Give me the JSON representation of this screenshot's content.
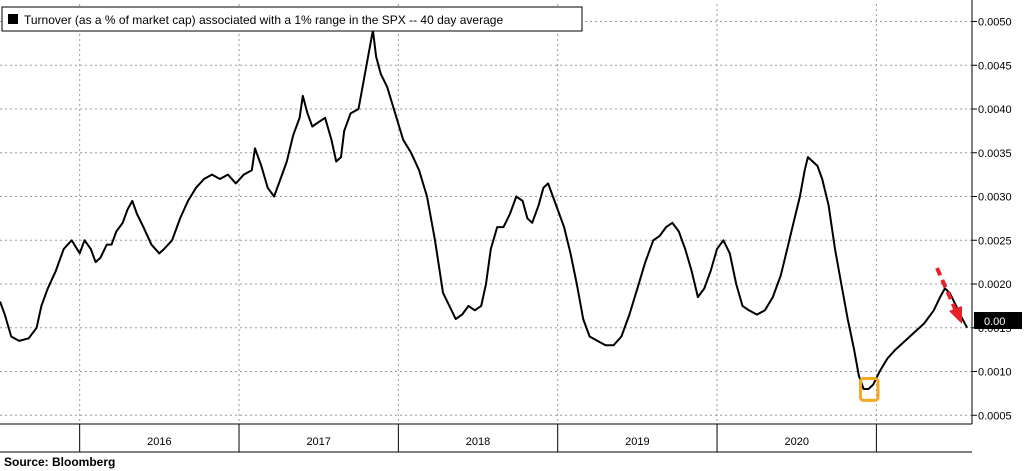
{
  "chart_data": {
    "type": "line",
    "title": "Turnover (as a % of market cap) associated with a 1% range in the SPX -- 40 day average",
    "source": "Source: Bloomberg",
    "x_categories": [
      "2016",
      "2017",
      "2018",
      "2019",
      "2020"
    ],
    "y_axis_side": "right",
    "ylim": [
      0.0004,
      0.0052
    ],
    "yticks": [
      "0.0005",
      "0.0010",
      "0.0015",
      "0.0020",
      "0.0025",
      "0.0030",
      "0.0035",
      "0.0040",
      "0.0045",
      "0.0050"
    ],
    "last_value_label": "0.00",
    "grid": true,
    "legend_placement": "top-left",
    "series": [
      {
        "color": "#000000",
        "points": [
          [
            2015.5,
            0.0018
          ],
          [
            2015.53,
            0.00165
          ],
          [
            2015.57,
            0.0014
          ],
          [
            2015.62,
            0.00135
          ],
          [
            2015.68,
            0.00138
          ],
          [
            2015.73,
            0.0015
          ],
          [
            2015.76,
            0.00175
          ],
          [
            2015.8,
            0.00195
          ],
          [
            2015.85,
            0.00215
          ],
          [
            2015.9,
            0.0024
          ],
          [
            2015.95,
            0.0025
          ],
          [
            2016.0,
            0.00235
          ],
          [
            2016.03,
            0.0025
          ],
          [
            2016.07,
            0.0024
          ],
          [
            2016.1,
            0.00225
          ],
          [
            2016.13,
            0.0023
          ],
          [
            2016.17,
            0.00245
          ],
          [
            2016.2,
            0.00245
          ],
          [
            2016.23,
            0.0026
          ],
          [
            2016.27,
            0.0027
          ],
          [
            2016.3,
            0.00285
          ],
          [
            2016.33,
            0.00295
          ],
          [
            2016.36,
            0.0028
          ],
          [
            2016.4,
            0.00265
          ],
          [
            2016.45,
            0.00245
          ],
          [
            2016.5,
            0.00235
          ],
          [
            2016.53,
            0.0024
          ],
          [
            2016.58,
            0.0025
          ],
          [
            2016.63,
            0.00275
          ],
          [
            2016.68,
            0.00295
          ],
          [
            2016.73,
            0.0031
          ],
          [
            2016.78,
            0.0032
          ],
          [
            2016.83,
            0.00325
          ],
          [
            2016.88,
            0.0032
          ],
          [
            2016.93,
            0.00325
          ],
          [
            2016.98,
            0.00315
          ],
          [
            2017.03,
            0.00325
          ],
          [
            2017.08,
            0.0033
          ],
          [
            2017.1,
            0.00355
          ],
          [
            2017.14,
            0.00335
          ],
          [
            2017.18,
            0.0031
          ],
          [
            2017.22,
            0.003
          ],
          [
            2017.25,
            0.00315
          ],
          [
            2017.3,
            0.0034
          ],
          [
            2017.34,
            0.0037
          ],
          [
            2017.38,
            0.0039
          ],
          [
            2017.4,
            0.00415
          ],
          [
            2017.43,
            0.00395
          ],
          [
            2017.46,
            0.0038
          ],
          [
            2017.5,
            0.00385
          ],
          [
            2017.54,
            0.0039
          ],
          [
            2017.58,
            0.00365
          ],
          [
            2017.61,
            0.0034
          ],
          [
            2017.64,
            0.00345
          ],
          [
            2017.66,
            0.00375
          ],
          [
            2017.7,
            0.00395
          ],
          [
            2017.75,
            0.004
          ],
          [
            2017.78,
            0.0043
          ],
          [
            2017.81,
            0.0046
          ],
          [
            2017.84,
            0.0049
          ],
          [
            2017.86,
            0.0046
          ],
          [
            2017.89,
            0.0044
          ],
          [
            2017.93,
            0.00425
          ],
          [
            2017.98,
            0.00395
          ],
          [
            2018.03,
            0.00365
          ],
          [
            2018.08,
            0.0035
          ],
          [
            2018.13,
            0.0033
          ],
          [
            2018.18,
            0.003
          ],
          [
            2018.23,
            0.0025
          ],
          [
            2018.28,
            0.0019
          ],
          [
            2018.32,
            0.00175
          ],
          [
            2018.36,
            0.0016
          ],
          [
            2018.4,
            0.00165
          ],
          [
            2018.44,
            0.00175
          ],
          [
            2018.48,
            0.0017
          ],
          [
            2018.52,
            0.00175
          ],
          [
            2018.55,
            0.002
          ],
          [
            2018.58,
            0.0024
          ],
          [
            2018.62,
            0.00265
          ],
          [
            2018.66,
            0.00265
          ],
          [
            2018.7,
            0.0028
          ],
          [
            2018.74,
            0.003
          ],
          [
            2018.78,
            0.00295
          ],
          [
            2018.81,
            0.00275
          ],
          [
            2018.84,
            0.0027
          ],
          [
            2018.88,
            0.0029
          ],
          [
            2018.91,
            0.0031
          ],
          [
            2018.94,
            0.00315
          ],
          [
            2018.97,
            0.003
          ],
          [
            2019.0,
            0.00285
          ],
          [
            2019.04,
            0.00265
          ],
          [
            2019.08,
            0.00235
          ],
          [
            2019.12,
            0.002
          ],
          [
            2019.16,
            0.0016
          ],
          [
            2019.2,
            0.0014
          ],
          [
            2019.25,
            0.00135
          ],
          [
            2019.3,
            0.0013
          ],
          [
            2019.35,
            0.0013
          ],
          [
            2019.4,
            0.0014
          ],
          [
            2019.45,
            0.00165
          ],
          [
            2019.5,
            0.00195
          ],
          [
            2019.55,
            0.00225
          ],
          [
            2019.6,
            0.0025
          ],
          [
            2019.64,
            0.00255
          ],
          [
            2019.68,
            0.00265
          ],
          [
            2019.72,
            0.0027
          ],
          [
            2019.76,
            0.0026
          ],
          [
            2019.8,
            0.0024
          ],
          [
            2019.84,
            0.00215
          ],
          [
            2019.88,
            0.00185
          ],
          [
            2019.92,
            0.00195
          ],
          [
            2019.96,
            0.00215
          ],
          [
            2020.0,
            0.0024
          ],
          [
            2020.04,
            0.0025
          ],
          [
            2020.08,
            0.00235
          ],
          [
            2020.12,
            0.002
          ],
          [
            2020.16,
            0.00175
          ],
          [
            2020.2,
            0.0017
          ],
          [
            2020.25,
            0.00165
          ],
          [
            2020.3,
            0.0017
          ],
          [
            2020.35,
            0.00185
          ],
          [
            2020.4,
            0.0021
          ],
          [
            2020.44,
            0.0024
          ],
          [
            2020.48,
            0.0027
          ],
          [
            2020.52,
            0.003
          ],
          [
            2020.55,
            0.0033
          ],
          [
            2020.57,
            0.00345
          ],
          [
            2020.6,
            0.0034
          ],
          [
            2020.63,
            0.00335
          ],
          [
            2020.66,
            0.0032
          ],
          [
            2020.7,
            0.0029
          ],
          [
            2020.74,
            0.0024
          ],
          [
            2020.78,
            0.002
          ],
          [
            2020.82,
            0.0016
          ],
          [
            2020.86,
            0.00125
          ],
          [
            2020.89,
            0.00095
          ],
          [
            2020.92,
            0.0008
          ],
          [
            2020.95,
            0.0008
          ],
          [
            2020.98,
            0.00085
          ],
          [
            2021.02,
            0.001
          ],
          [
            2021.07,
            0.00115
          ],
          [
            2021.12,
            0.00125
          ],
          [
            2021.18,
            0.00135
          ],
          [
            2021.24,
            0.00145
          ],
          [
            2021.3,
            0.00155
          ],
          [
            2021.36,
            0.0017
          ],
          [
            2021.4,
            0.00185
          ],
          [
            2021.43,
            0.00195
          ],
          [
            2021.46,
            0.0019
          ],
          [
            2021.5,
            0.00175
          ],
          [
            2021.54,
            0.0016
          ],
          [
            2021.57,
            0.0015
          ]
        ]
      }
    ],
    "annotations": {
      "highlight_box_color": "#f5a623",
      "highlight_box_x_range": [
        2020.9,
        2021.01
      ],
      "highlight_box_y_range": [
        0.00067,
        0.00092
      ],
      "arrow_color": "#e8202a",
      "arrow_direction": "down-right"
    }
  }
}
